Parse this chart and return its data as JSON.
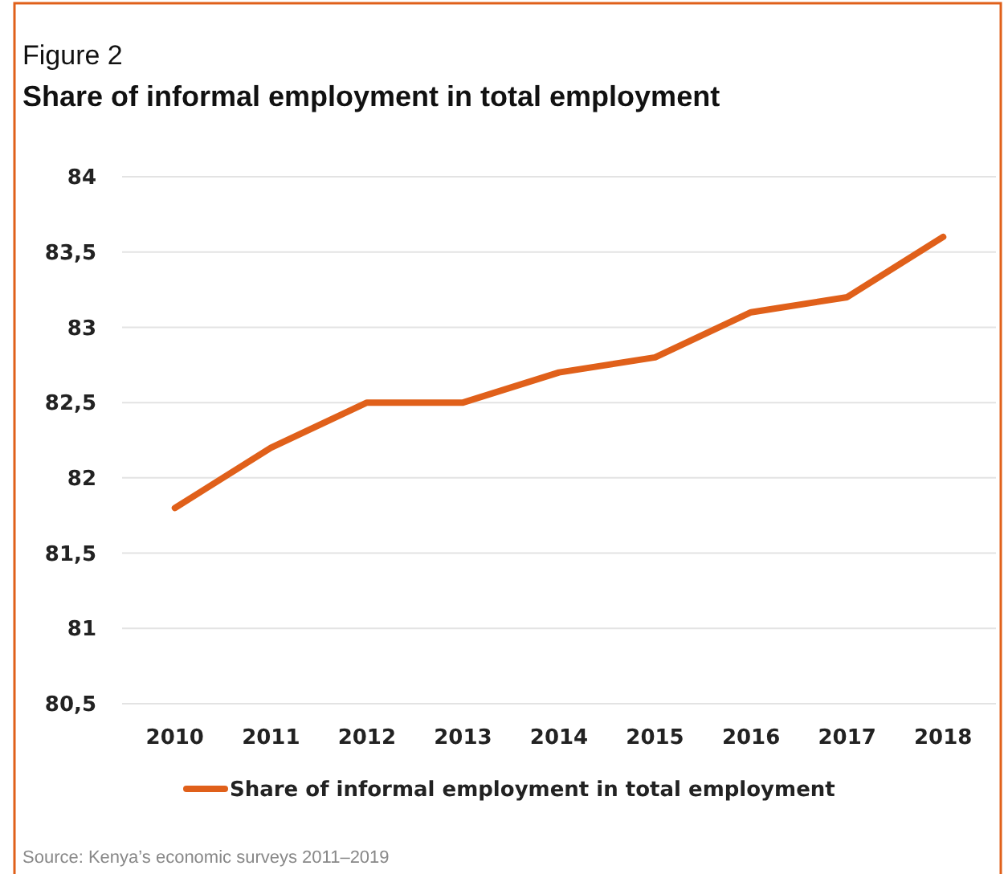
{
  "chart_data": {
    "type": "line",
    "title": "Figure 2",
    "subtitle": "Share of informal employment in total employment",
    "categories": [
      "2010",
      "2011",
      "2012",
      "2013",
      "2014",
      "2015",
      "2016",
      "2017",
      "2018"
    ],
    "series": [
      {
        "name": "Share of informal employment in total employment",
        "color": "#e0601a",
        "values": [
          81.8,
          82.2,
          82.5,
          82.5,
          82.7,
          82.8,
          83.1,
          83.2,
          83.6
        ]
      }
    ],
    "ylim": [
      80.5,
      84
    ],
    "yticks": [
      {
        "value": 80.5,
        "label": "80,5"
      },
      81,
      {
        "value": 81.5,
        "label": "81,5"
      },
      82,
      {
        "value": 82.5,
        "label": "82,5"
      },
      83,
      {
        "value": 83.5,
        "label": "83,5"
      },
      84
    ],
    "grid": "y",
    "legend": "bottom",
    "marker": "none",
    "line_style": "solid",
    "annotations": [
      "Source: Kenya’s economic surveys 2011–2019"
    ]
  }
}
